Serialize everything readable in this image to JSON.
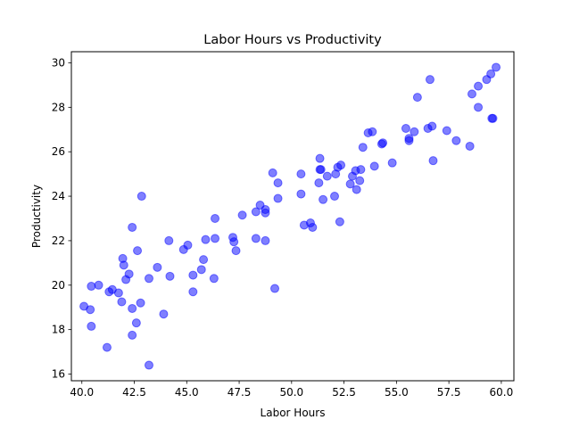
{
  "chart_data": {
    "type": "scatter",
    "title": "Labor Hours vs Productivity",
    "xlabel": "Labor Hours",
    "ylabel": "Productivity",
    "xlim": [
      39.5,
      60.6
    ],
    "ylim": [
      15.7,
      30.5
    ],
    "xticks": [
      "40.0",
      "42.5",
      "45.0",
      "47.5",
      "50.0",
      "52.5",
      "55.0",
      "57.5",
      "60.0"
    ],
    "yticks": [
      "16",
      "18",
      "20",
      "22",
      "24",
      "26",
      "28",
      "30"
    ],
    "grid": false,
    "point_color": "#0000ff",
    "point_opacity": 0.5,
    "points": [
      {
        "x": 40.1,
        "y": 19.05
      },
      {
        "x": 40.4,
        "y": 18.9
      },
      {
        "x": 40.45,
        "y": 19.95
      },
      {
        "x": 40.45,
        "y": 18.15
      },
      {
        "x": 40.8,
        "y": 20.0
      },
      {
        "x": 41.2,
        "y": 17.2
      },
      {
        "x": 41.3,
        "y": 19.7
      },
      {
        "x": 41.45,
        "y": 19.8
      },
      {
        "x": 41.75,
        "y": 19.65
      },
      {
        "x": 41.9,
        "y": 19.25
      },
      {
        "x": 41.95,
        "y": 21.2
      },
      {
        "x": 42.0,
        "y": 20.9
      },
      {
        "x": 42.1,
        "y": 20.25
      },
      {
        "x": 42.25,
        "y": 20.5
      },
      {
        "x": 42.4,
        "y": 17.75
      },
      {
        "x": 42.4,
        "y": 18.95
      },
      {
        "x": 42.4,
        "y": 22.6
      },
      {
        "x": 42.6,
        "y": 18.3
      },
      {
        "x": 42.65,
        "y": 21.55
      },
      {
        "x": 42.8,
        "y": 19.2
      },
      {
        "x": 42.85,
        "y": 24.0
      },
      {
        "x": 43.2,
        "y": 20.3
      },
      {
        "x": 43.2,
        "y": 16.4
      },
      {
        "x": 43.6,
        "y": 20.8
      },
      {
        "x": 43.9,
        "y": 18.7
      },
      {
        "x": 44.15,
        "y": 22.0
      },
      {
        "x": 44.2,
        "y": 20.4
      },
      {
        "x": 44.85,
        "y": 21.6
      },
      {
        "x": 45.05,
        "y": 21.8
      },
      {
        "x": 45.3,
        "y": 20.45
      },
      {
        "x": 45.3,
        "y": 19.7
      },
      {
        "x": 45.7,
        "y": 20.7
      },
      {
        "x": 45.8,
        "y": 21.15
      },
      {
        "x": 45.9,
        "y": 22.05
      },
      {
        "x": 46.3,
        "y": 20.3
      },
      {
        "x": 46.35,
        "y": 22.1
      },
      {
        "x": 46.35,
        "y": 23.0
      },
      {
        "x": 47.2,
        "y": 22.15
      },
      {
        "x": 47.25,
        "y": 21.95
      },
      {
        "x": 47.35,
        "y": 21.55
      },
      {
        "x": 47.65,
        "y": 23.15
      },
      {
        "x": 48.3,
        "y": 23.3
      },
      {
        "x": 48.3,
        "y": 22.1
      },
      {
        "x": 48.5,
        "y": 23.6
      },
      {
        "x": 48.75,
        "y": 23.25
      },
      {
        "x": 48.75,
        "y": 23.4
      },
      {
        "x": 48.75,
        "y": 22.0
      },
      {
        "x": 49.1,
        "y": 25.05
      },
      {
        "x": 49.2,
        "y": 19.85
      },
      {
        "x": 49.35,
        "y": 23.9
      },
      {
        "x": 49.35,
        "y": 24.6
      },
      {
        "x": 50.45,
        "y": 25.0
      },
      {
        "x": 50.45,
        "y": 24.1
      },
      {
        "x": 50.6,
        "y": 22.7
      },
      {
        "x": 50.9,
        "y": 22.8
      },
      {
        "x": 51.0,
        "y": 22.6
      },
      {
        "x": 51.3,
        "y": 24.6
      },
      {
        "x": 51.35,
        "y": 25.7
      },
      {
        "x": 51.35,
        "y": 25.2
      },
      {
        "x": 51.4,
        "y": 25.2
      },
      {
        "x": 51.5,
        "y": 23.85
      },
      {
        "x": 51.7,
        "y": 24.9
      },
      {
        "x": 52.05,
        "y": 24.0
      },
      {
        "x": 52.1,
        "y": 25.0
      },
      {
        "x": 52.2,
        "y": 25.3
      },
      {
        "x": 52.3,
        "y": 22.85
      },
      {
        "x": 52.35,
        "y": 25.4
      },
      {
        "x": 52.8,
        "y": 24.55
      },
      {
        "x": 52.9,
        "y": 24.9
      },
      {
        "x": 53.05,
        "y": 25.15
      },
      {
        "x": 53.1,
        "y": 24.3
      },
      {
        "x": 53.25,
        "y": 24.7
      },
      {
        "x": 53.3,
        "y": 25.2
      },
      {
        "x": 53.4,
        "y": 26.2
      },
      {
        "x": 53.65,
        "y": 26.85
      },
      {
        "x": 53.85,
        "y": 26.9
      },
      {
        "x": 53.95,
        "y": 25.35
      },
      {
        "x": 54.3,
        "y": 26.35
      },
      {
        "x": 54.35,
        "y": 26.4
      },
      {
        "x": 54.8,
        "y": 25.5
      },
      {
        "x": 55.45,
        "y": 27.05
      },
      {
        "x": 55.6,
        "y": 26.6
      },
      {
        "x": 55.6,
        "y": 26.5
      },
      {
        "x": 55.85,
        "y": 26.9
      },
      {
        "x": 56.0,
        "y": 28.45
      },
      {
        "x": 56.5,
        "y": 27.05
      },
      {
        "x": 56.6,
        "y": 29.25
      },
      {
        "x": 56.7,
        "y": 27.15
      },
      {
        "x": 56.75,
        "y": 25.6
      },
      {
        "x": 57.4,
        "y": 26.95
      },
      {
        "x": 57.85,
        "y": 26.5
      },
      {
        "x": 58.5,
        "y": 26.25
      },
      {
        "x": 58.6,
        "y": 28.6
      },
      {
        "x": 58.9,
        "y": 28.0
      },
      {
        "x": 58.9,
        "y": 28.95
      },
      {
        "x": 59.3,
        "y": 29.25
      },
      {
        "x": 59.5,
        "y": 29.5
      },
      {
        "x": 59.55,
        "y": 27.5
      },
      {
        "x": 59.6,
        "y": 27.5
      },
      {
        "x": 59.75,
        "y": 29.8
      }
    ]
  }
}
